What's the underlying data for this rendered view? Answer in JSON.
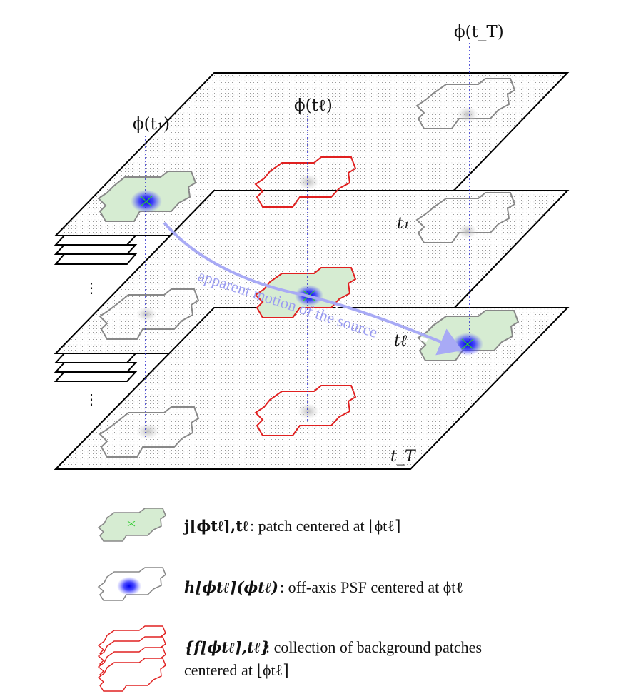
{
  "labels": {
    "phi_t1": "ϕ(t₁)",
    "phi_tl": "ϕ(tℓ)",
    "phi_tT": "ϕ(t_T)",
    "plane_t1": "t₁",
    "plane_tl": "tℓ",
    "plane_tT": "t_T",
    "motion": "apparent motion of the source",
    "ellipsis": "⋮"
  },
  "legend": {
    "patch_symbol": "j⌊ϕtℓ⌉,tℓ",
    "patch_text": ": patch centered at ⌊ϕtℓ⌉",
    "psf_symbol": "h⌊ϕtℓ⌉(ϕtℓ)",
    "psf_text": ": off-axis PSF centered at ϕtℓ",
    "bg_symbol": "{f⌊ϕtℓ⌉,tℓ}",
    "bg_text": ": collection of background patches",
    "bg_text2": "centered at ⌊ϕtℓ⌉"
  },
  "colors": {
    "patch_fill": "#d6ecd2",
    "patch_stroke": "#8a8a8a",
    "background_stroke": "#e02020",
    "psf": "#1010ee",
    "guide": "#3030d0",
    "motion_arrow": "#a8aaf5"
  }
}
